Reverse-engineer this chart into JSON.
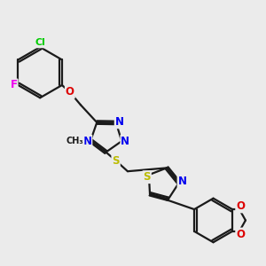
{
  "bg_color": "#ebebeb",
  "bond_color": "#1a1a1a",
  "bond_lw": 1.6,
  "atom_colors": {
    "N": "#0000ee",
    "O": "#dd0000",
    "S": "#bbbb00",
    "Cl": "#00cc00",
    "F": "#ee00ee",
    "C": "#1a1a1a"
  },
  "font_size": 8.5
}
